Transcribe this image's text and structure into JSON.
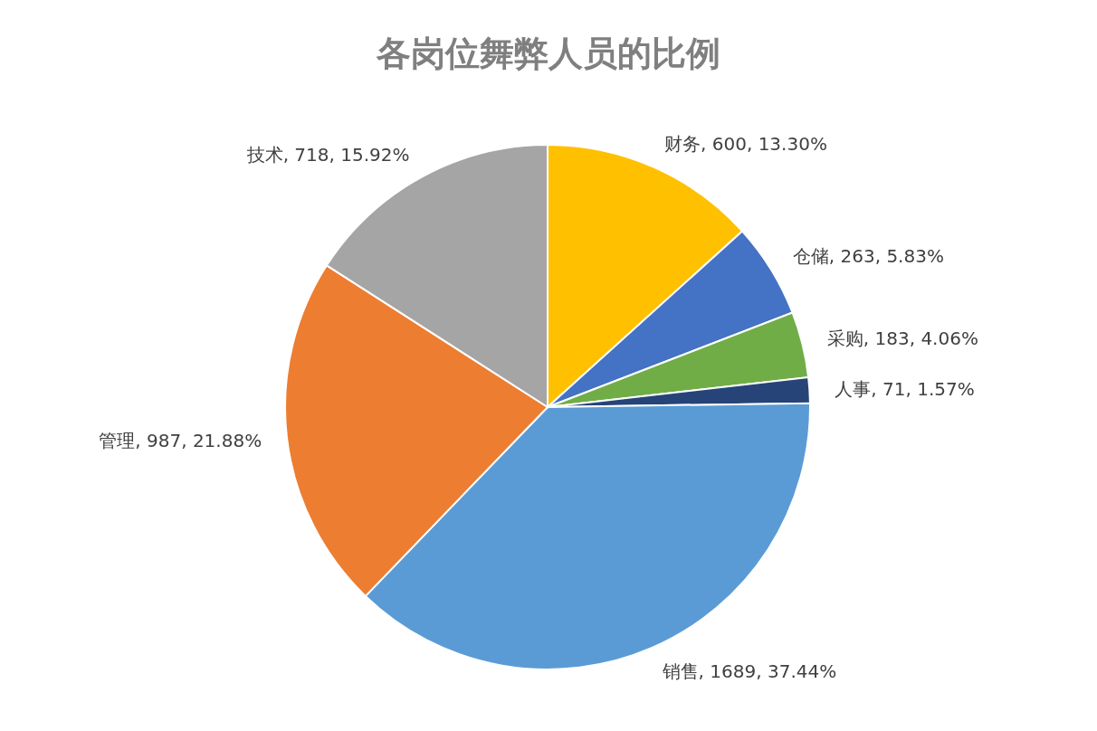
{
  "chart_data": {
    "type": "pie",
    "title": "各岗位舞弊人员的比例",
    "categories": [
      "财务",
      "仓储",
      "采购",
      "人事",
      "销售",
      "管理",
      "技术"
    ],
    "values": [
      600,
      263,
      183,
      71,
      1689,
      987,
      718
    ],
    "value_labels": [
      "600, 13.30%",
      "263, 5.83%",
      "183, 4.06%",
      "71, 1.57%",
      "1689, 37.44%",
      "987, 21.88%",
      "718, 15.92%"
    ],
    "colors": [
      "#ffc000",
      "#4472c4",
      "#70ad47",
      "#264478",
      "#5b9bd5",
      "#ed7d31",
      "#a5a5a5"
    ]
  }
}
